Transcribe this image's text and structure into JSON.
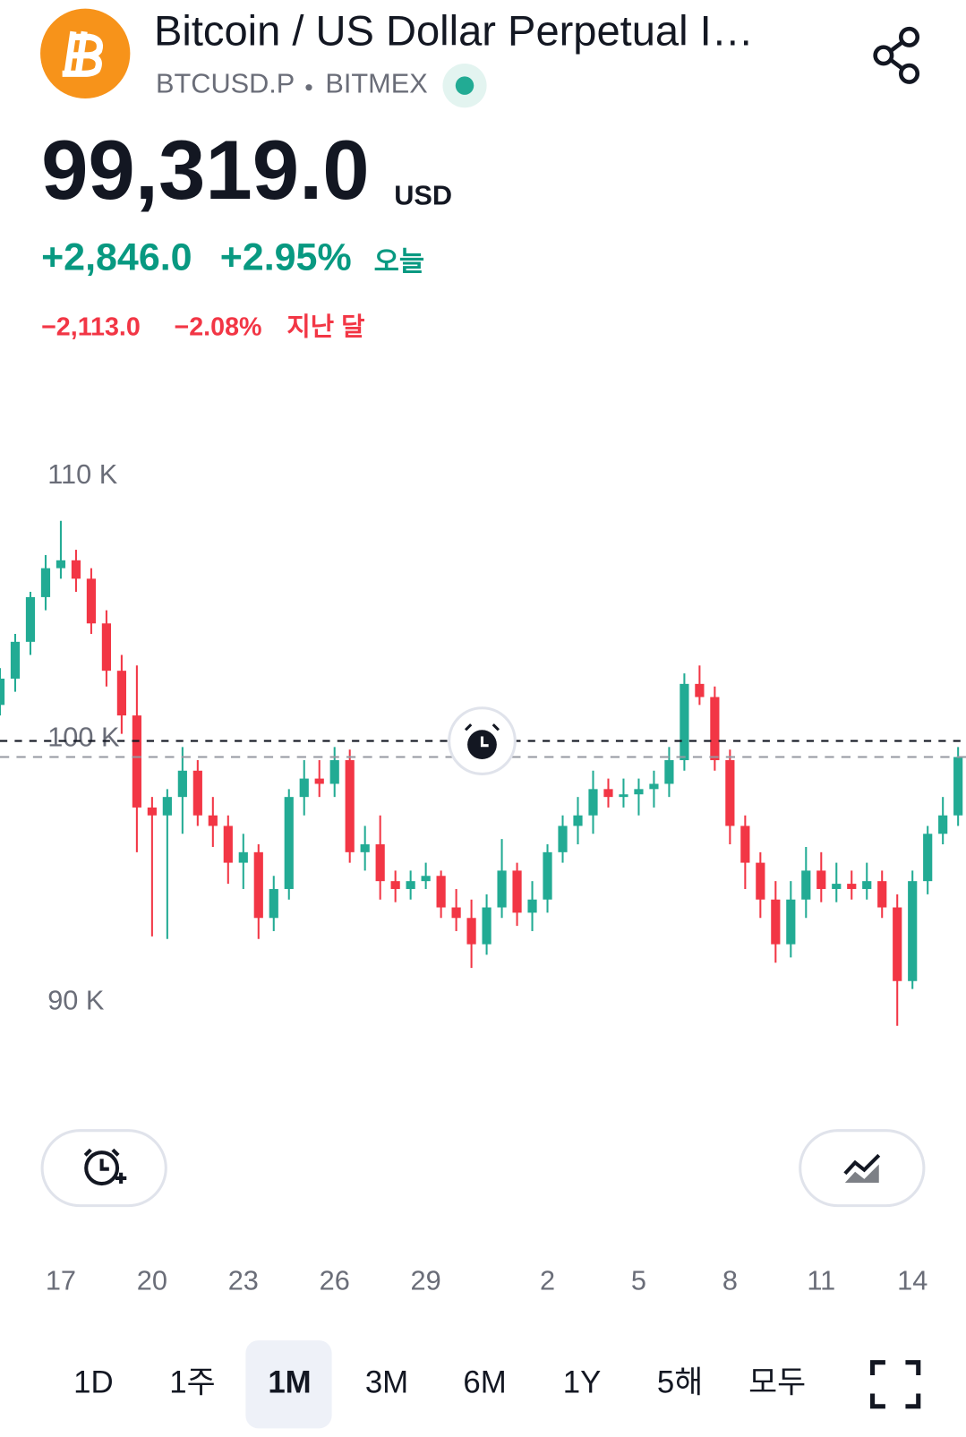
{
  "header": {
    "title": "Bitcoin / US Dollar Perpetual I…",
    "symbol": "BTCUSD.P",
    "exchange": "BITMEX",
    "price": "99,319.0",
    "currency": "USD",
    "change_today": "+2,846.0",
    "change_today_pct": "+2.95%",
    "today_label": "오늘",
    "change_month": "−2,113.0",
    "change_month_pct": "−2.08%",
    "month_label": "지난 달"
  },
  "chart_data": {
    "type": "candlestick",
    "x": [
      -2,
      -1.5,
      -1,
      -0.5,
      0,
      0.5,
      1,
      1.5,
      2,
      2.5,
      3,
      3.5,
      4,
      4.5,
      5,
      5.5,
      6,
      6.5,
      7,
      7.5,
      8,
      8.5,
      9,
      9.5,
      10,
      10.5,
      11,
      11.5,
      12,
      12.5,
      13,
      13.5,
      14,
      14.5,
      15,
      15.5,
      16,
      16.5,
      17,
      17.5,
      18,
      18.5,
      19,
      19.5,
      20,
      20.5,
      21,
      21.5,
      22,
      22.5,
      23,
      23.5,
      24,
      24.5,
      25,
      25.5,
      26,
      26.5,
      27,
      27.5,
      28,
      28.5,
      29,
      29.5
    ],
    "open": [
      101300,
      102300,
      103700,
      105400,
      106500,
      106800,
      106100,
      104400,
      102600,
      100900,
      97400,
      97100,
      97800,
      98800,
      97100,
      96700,
      95300,
      95700,
      93200,
      94300,
      97800,
      98500,
      98300,
      99200,
      95700,
      96000,
      94600,
      94300,
      94600,
      94800,
      93600,
      93200,
      92200,
      93600,
      95000,
      93400,
      93900,
      95700,
      96700,
      97100,
      98100,
      97800,
      97900,
      98100,
      98300,
      99200,
      102100,
      101600,
      99200,
      96700,
      95300,
      93900,
      92200,
      93900,
      95000,
      94300,
      94500,
      94300,
      94600,
      93600,
      90800,
      94600,
      96400,
      97100
    ],
    "high": [
      102700,
      104000,
      105600,
      107000,
      108300,
      107200,
      106500,
      104900,
      103200,
      102800,
      97800,
      98100,
      99700,
      99200,
      97800,
      97100,
      96400,
      96000,
      94800,
      98100,
      99200,
      99200,
      99700,
      99600,
      96700,
      97100,
      95000,
      95000,
      95300,
      95000,
      94300,
      93900,
      94100,
      96200,
      95300,
      94600,
      96000,
      97100,
      97800,
      98800,
      98500,
      98500,
      98500,
      98800,
      99700,
      102500,
      102800,
      102000,
      99600,
      97100,
      95700,
      94600,
      94600,
      95900,
      95700,
      95300,
      95000,
      95300,
      95000,
      94100,
      95000,
      96700,
      97800,
      99700
    ],
    "low": [
      100900,
      101800,
      103200,
      104900,
      106100,
      105600,
      104000,
      102000,
      100200,
      95700,
      92500,
      92400,
      96400,
      96700,
      95900,
      94500,
      94300,
      92400,
      92700,
      93900,
      97100,
      97800,
      97800,
      95300,
      95000,
      93900,
      93800,
      93900,
      94300,
      93200,
      92700,
      91300,
      91800,
      93200,
      92900,
      92700,
      93400,
      95300,
      96000,
      96400,
      97400,
      97400,
      97100,
      97400,
      97800,
      98800,
      101300,
      98800,
      96000,
      94300,
      93200,
      91500,
      91700,
      93200,
      93800,
      93800,
      93900,
      93900,
      93200,
      89100,
      90500,
      94100,
      96000,
      96700
    ],
    "close": [
      102300,
      103700,
      105400,
      106500,
      106800,
      106100,
      104400,
      102600,
      100900,
      97400,
      97100,
      97800,
      98800,
      97100,
      96700,
      95300,
      95700,
      93200,
      94300,
      97800,
      98500,
      98300,
      99200,
      95700,
      96000,
      94600,
      94300,
      94600,
      94800,
      93600,
      93200,
      92200,
      93600,
      95000,
      93400,
      93900,
      95700,
      96700,
      97100,
      98100,
      97800,
      97900,
      98100,
      98300,
      99200,
      102100,
      101600,
      99200,
      96700,
      95300,
      93900,
      92200,
      93900,
      95000,
      94300,
      94500,
      94300,
      94600,
      93600,
      90800,
      94600,
      96400,
      97100,
      99319
    ],
    "up_color": "#22ab94",
    "down_color": "#f23645",
    "xlim": [
      -2,
      29.76
    ],
    "ylim": [
      87000,
      113000
    ],
    "xticks": [
      {
        "value": 0,
        "label": "17"
      },
      {
        "value": 3,
        "label": "20"
      },
      {
        "value": 6,
        "label": "23"
      },
      {
        "value": 9,
        "label": "26"
      },
      {
        "value": 12,
        "label": "29"
      },
      {
        "value": 16,
        "label": "2"
      },
      {
        "value": 19,
        "label": "5"
      },
      {
        "value": 22,
        "label": "8"
      },
      {
        "value": 25,
        "label": "11"
      },
      {
        "value": 28,
        "label": "14"
      }
    ],
    "yticks": [
      {
        "value": 110000,
        "label": "110 K"
      },
      {
        "value": 100000,
        "label": "100 K"
      },
      {
        "value": 90000,
        "label": "90 K"
      }
    ],
    "grid": false
  },
  "ranges": [
    "1D",
    "1주",
    "1M",
    "3M",
    "6M",
    "1Y",
    "5해",
    "모두"
  ],
  "selected_range": 2
}
